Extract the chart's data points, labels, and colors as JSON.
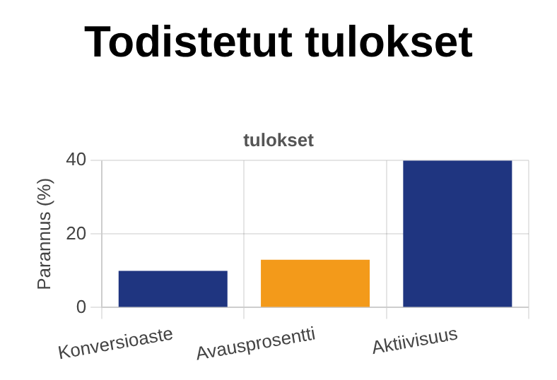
{
  "chart_data": {
    "type": "bar",
    "title": "Todistetut tulokset",
    "subtitle": "tulokset",
    "ylabel": "Parannus (%)",
    "categories": [
      "Konversioaste",
      "Avausprosentti",
      "Aktiivisuus"
    ],
    "values": [
      10,
      13,
      40
    ],
    "colors": [
      "#1f3580",
      "#f39a1a",
      "#1f3580"
    ],
    "ylim": [
      0,
      40
    ],
    "yticks": [
      0,
      20,
      40
    ],
    "grid": true
  }
}
